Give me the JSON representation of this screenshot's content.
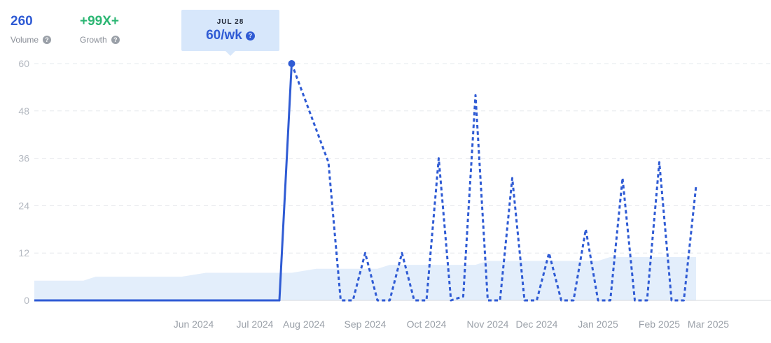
{
  "metrics": {
    "volume": {
      "value": "260",
      "label": "Volume",
      "help_icon": "question-icon"
    },
    "growth": {
      "value": "+99X+",
      "label": "Growth",
      "help_icon": "question-icon"
    }
  },
  "tooltip": {
    "date": "JUL 28",
    "value": "60/wk",
    "help_icon": "question-icon"
  },
  "colors": {
    "line": "#2f5bd4",
    "volume_fill": "#e3eefb",
    "grid": "#e6e8ec",
    "growth": "#2bb673"
  },
  "chart_data": {
    "type": "line",
    "title": "",
    "xlabel": "",
    "ylabel": "",
    "ylim": [
      0,
      60
    ],
    "yticks": [
      0,
      12,
      24,
      36,
      48,
      60
    ],
    "grid": true,
    "x_unit": "week",
    "x_tick_labels": [
      "Jun 2024",
      "Jul 2024",
      "Aug 2024",
      "Sep 2024",
      "Oct 2024",
      "Nov 2024",
      "Dec 2024",
      "Jan 2025",
      "Feb 2025",
      "Mar 2025"
    ],
    "x_tick_weeks": [
      13,
      18,
      22,
      27,
      32,
      37,
      41,
      46,
      51,
      55
    ],
    "highlight": {
      "week": 21,
      "value": 60
    },
    "series": [
      {
        "style": "solid",
        "points": [
          [
            0,
            0
          ],
          [
            1,
            0
          ],
          [
            2,
            0
          ],
          [
            3,
            0
          ],
          [
            4,
            0
          ],
          [
            5,
            0
          ],
          [
            6,
            0
          ],
          [
            7,
            0
          ],
          [
            8,
            0
          ],
          [
            9,
            0
          ],
          [
            10,
            0
          ],
          [
            11,
            0
          ],
          [
            12,
            0
          ],
          [
            13,
            0
          ],
          [
            14,
            0
          ],
          [
            15,
            0
          ],
          [
            16,
            0
          ],
          [
            17,
            0
          ],
          [
            18,
            0
          ],
          [
            19,
            0
          ],
          [
            20,
            0
          ],
          [
            21,
            60
          ]
        ]
      },
      {
        "style": "dashed",
        "points": [
          [
            21,
            60
          ],
          [
            24,
            35
          ],
          [
            25,
            0
          ],
          [
            26,
            0
          ],
          [
            27,
            12
          ],
          [
            28,
            0
          ],
          [
            29,
            0
          ],
          [
            30,
            12
          ],
          [
            31,
            0
          ],
          [
            32,
            0
          ],
          [
            33,
            36
          ],
          [
            34,
            0
          ],
          [
            35,
            1
          ],
          [
            36,
            52
          ],
          [
            37,
            0
          ],
          [
            38,
            0
          ],
          [
            39,
            31
          ],
          [
            40,
            0
          ],
          [
            41,
            0
          ],
          [
            42,
            12
          ],
          [
            43,
            0
          ],
          [
            44,
            0
          ],
          [
            45,
            18
          ],
          [
            46,
            0
          ],
          [
            47,
            0
          ],
          [
            48,
            31
          ],
          [
            49,
            0
          ],
          [
            50,
            0
          ],
          [
            51,
            35
          ],
          [
            52,
            0
          ],
          [
            53,
            0
          ],
          [
            54,
            29
          ]
        ]
      },
      {
        "style": "area",
        "points": [
          [
            0,
            5
          ],
          [
            4,
            5
          ],
          [
            5,
            6
          ],
          [
            11,
            6
          ],
          [
            12,
            6
          ],
          [
            14,
            7
          ],
          [
            18,
            7
          ],
          [
            21,
            7
          ],
          [
            23,
            8
          ],
          [
            28,
            8
          ],
          [
            29,
            9
          ],
          [
            36,
            9
          ],
          [
            37,
            10
          ],
          [
            46,
            10
          ],
          [
            47,
            11
          ],
          [
            54,
            11
          ]
        ]
      }
    ]
  }
}
